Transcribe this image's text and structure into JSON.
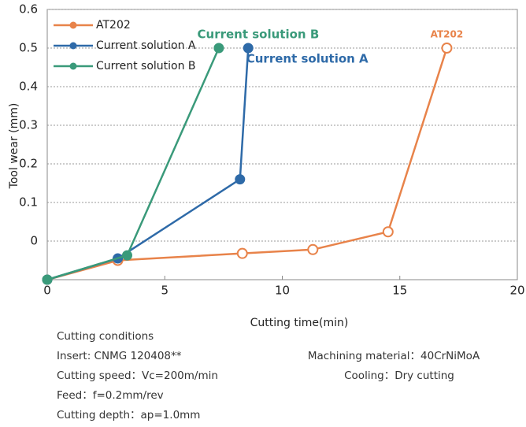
{
  "chart_data": {
    "type": "line",
    "y_label": "Tool wear (mm)",
    "x_label": "Cutting time(min)",
    "xlim": [
      0,
      20
    ],
    "xticks": [
      0,
      5,
      10,
      15,
      20
    ],
    "ylim": [
      -0.1,
      0.6
    ],
    "yticks": [
      0,
      0.1,
      0.2,
      0.3,
      0.4,
      0.5,
      0.6
    ],
    "grid": true,
    "legend": "upper left",
    "series": [
      {
        "name": "AT202",
        "color": "#e8834a",
        "hollow": true,
        "x": [
          0,
          3.0,
          8.3,
          11.3,
          14.5,
          17.0
        ],
        "values": [
          -0.1,
          -0.05,
          -0.032,
          -0.022,
          0.024,
          0.5
        ]
      },
      {
        "name": "Current solution A",
        "color": "#2e6aa8",
        "x": [
          0,
          3.0,
          8.2,
          8.55
        ],
        "values": [
          -0.1,
          -0.045,
          0.16,
          0.5
        ]
      },
      {
        "name": "Current solution B",
        "color": "#3a9a7a",
        "x": [
          0,
          3.4,
          7.3
        ],
        "values": [
          -0.1,
          -0.037,
          0.5
        ]
      }
    ],
    "annotations": [
      "AT202",
      "Current solution A",
      "Current solution B"
    ]
  },
  "conditions": {
    "left": [
      "Cutting conditions",
      "Insert: CNMG 120408**",
      "Cutting speed：Vc=200m/min",
      "Feed：f=0.2mm/rev",
      "Cutting depth：ap=1.0mm"
    ],
    "right": [
      "Machining material：40CrNiMoA",
      "Cooling：Dry cutting"
    ]
  }
}
